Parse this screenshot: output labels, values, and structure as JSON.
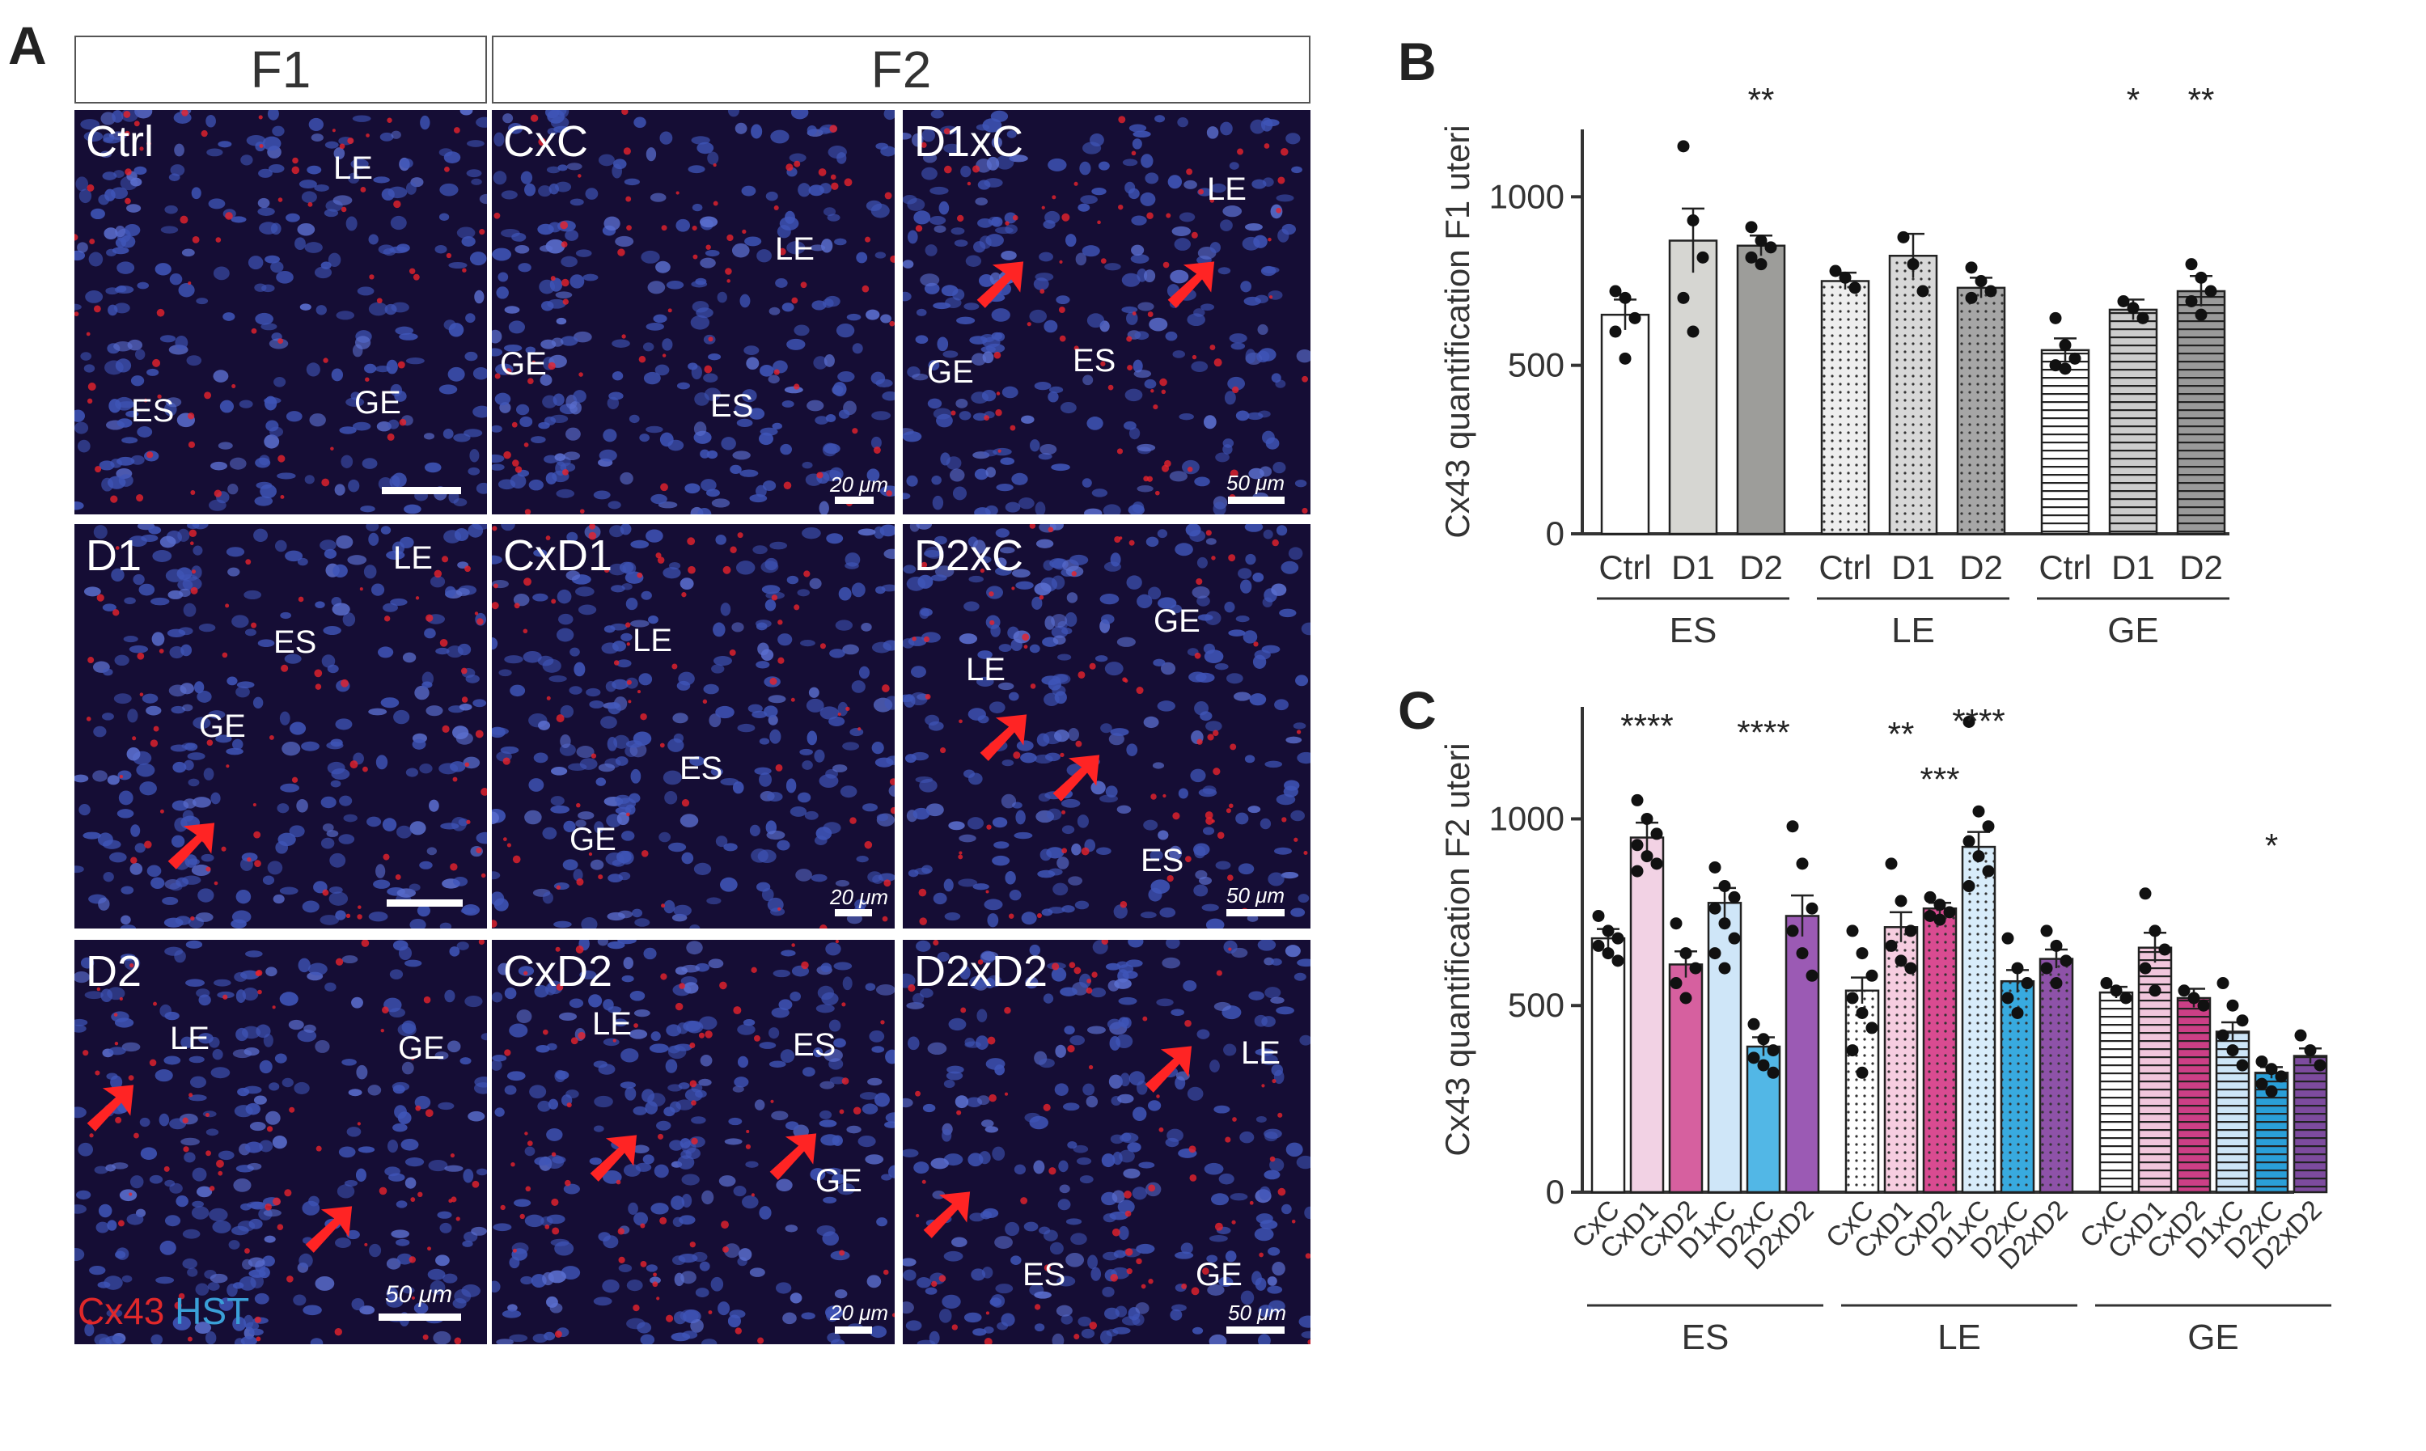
{
  "panels": {
    "a": "A",
    "b": "B",
    "c": "C"
  },
  "headers": {
    "f1": "F1",
    "f2": "F2"
  },
  "images": [
    {
      "title": "Ctrl",
      "labels": [
        "LE",
        "ES",
        "GE"
      ],
      "scale": "",
      "arrows": 0
    },
    {
      "title": "CxC",
      "labels": [
        "LE",
        "GE",
        "ES"
      ],
      "scale": "20 μm",
      "arrows": 0
    },
    {
      "title": "D1xC",
      "labels": [
        "LE",
        "GE",
        "ES"
      ],
      "scale": "50 μm",
      "arrows": 2
    },
    {
      "title": "D1",
      "labels": [
        "LE",
        "ES",
        "GE"
      ],
      "scale": "",
      "arrows": 1
    },
    {
      "title": "CxD1",
      "labels": [
        "LE",
        "ES",
        "GE"
      ],
      "scale": "20 μm",
      "arrows": 0
    },
    {
      "title": "D2xC",
      "labels": [
        "GE",
        "LE",
        "ES"
      ],
      "scale": "50 μm",
      "arrows": 2
    },
    {
      "title": "D2",
      "labels": [
        "LE",
        "GE"
      ],
      "scale": "50 μm",
      "arrows": 2
    },
    {
      "title": "CxD2",
      "labels": [
        "LE",
        "ES",
        "GE"
      ],
      "scale": "20 μm",
      "arrows": 2
    },
    {
      "title": "D2xD2",
      "labels": [
        "LE",
        "ES",
        "GE"
      ],
      "scale": "50 μm",
      "arrows": 2
    }
  ],
  "stain": {
    "red": "Cx43",
    "blue": "HST",
    "red_color": "#e0282a",
    "blue_color": "#3aa0d8"
  },
  "chart_data": [
    {
      "id": "B",
      "type": "bar",
      "ylabel": "Cx43 quantification F1 uteri",
      "ylim": [
        0,
        1200
      ],
      "yticks": [
        0,
        500,
        1000
      ],
      "categories": [
        "Ctrl",
        "D1",
        "D2",
        "Ctrl",
        "D1",
        "D2",
        "Ctrl",
        "D1",
        "D2"
      ],
      "groups": [
        {
          "label": "ES",
          "start": 0,
          "end": 2
        },
        {
          "label": "LE",
          "start": 3,
          "end": 5
        },
        {
          "label": "GE",
          "start": 6,
          "end": 8
        }
      ],
      "values": [
        650,
        870,
        855,
        750,
        825,
        730,
        545,
        665,
        720
      ],
      "errors": [
        45,
        95,
        30,
        25,
        65,
        30,
        35,
        30,
        45
      ],
      "points": [
        [
          720,
          700,
          640,
          600,
          520
        ],
        [
          1150,
          930,
          820,
          700,
          600
        ],
        [
          910,
          870,
          850,
          820,
          800
        ],
        [
          780,
          760,
          730
        ],
        [
          880,
          800,
          720
        ],
        [
          790,
          750,
          720,
          700
        ],
        [
          640,
          560,
          520,
          500,
          490
        ],
        [
          690,
          670,
          640
        ],
        [
          800,
          760,
          720,
          690,
          650
        ]
      ],
      "fills": [
        "#ffffff",
        "#d6d6d2",
        "#9d9d9a",
        "#eeeeee",
        "#d8d8d8",
        "#a6a6a6",
        "#ffffff",
        "#cccccc",
        "#9a9a9a"
      ],
      "significance": [
        "",
        "",
        "**",
        "",
        "",
        "",
        "",
        "*",
        "**"
      ]
    },
    {
      "id": "C",
      "type": "bar",
      "ylabel": "Cx43 quantification F2 uteri",
      "ylim": [
        0,
        1300
      ],
      "yticks": [
        0,
        500,
        1000
      ],
      "categories": [
        "CxC",
        "CxD1",
        "CxD2",
        "D1xC",
        "D2xC",
        "D2xD2",
        "CxC",
        "CxD1",
        "CxD2",
        "D1xC",
        "D2xC",
        "D2xD2",
        "CxC",
        "CxD1",
        "CxD2",
        "D1xC",
        "D2xC",
        "D2xD2"
      ],
      "groups": [
        {
          "label": "ES",
          "start": 0,
          "end": 5
        },
        {
          "label": "LE",
          "start": 6,
          "end": 11
        },
        {
          "label": "GE",
          "start": 12,
          "end": 17
        }
      ],
      "values": [
        680,
        950,
        610,
        775,
        390,
        740,
        540,
        710,
        760,
        925,
        565,
        625,
        535,
        655,
        520,
        430,
        320,
        365
      ],
      "errors": [
        25,
        40,
        35,
        40,
        25,
        55,
        35,
        40,
        15,
        40,
        30,
        25,
        15,
        40,
        25,
        25,
        15,
        20
      ],
      "points": [
        [
          740,
          700,
          680,
          660,
          640,
          620
        ],
        [
          1050,
          1000,
          960,
          930,
          900,
          880,
          860
        ],
        [
          720,
          640,
          600,
          560,
          520
        ],
        [
          870,
          820,
          790,
          760,
          720,
          680,
          640,
          600
        ],
        [
          450,
          410,
          380,
          360,
          340,
          320
        ],
        [
          980,
          880,
          760,
          700,
          640,
          580
        ],
        [
          700,
          640,
          580,
          520,
          480,
          440,
          380,
          320
        ],
        [
          880,
          780,
          700,
          660,
          620,
          600
        ],
        [
          790,
          770,
          750,
          740,
          730
        ],
        [
          1260,
          1020,
          980,
          940,
          900,
          860,
          820
        ],
        [
          680,
          600,
          560,
          520,
          480
        ],
        [
          700,
          660,
          620,
          600,
          560
        ],
        [
          560,
          540,
          520
        ],
        [
          800,
          700,
          650,
          600,
          540
        ],
        [
          540,
          520,
          500
        ],
        [
          560,
          500,
          460,
          420,
          380,
          340
        ],
        [
          350,
          330,
          310,
          290,
          270
        ],
        [
          420,
          380,
          340
        ]
      ],
      "fills": [
        "#ffffff",
        "#f2d2e4",
        "#d6609f",
        "#cfe6f8",
        "#52b7e6",
        "#9b5ab4",
        "#ffffff",
        "#f6cde0",
        "#d94b91",
        "#d8ecfa",
        "#38aadf",
        "#8e52a8",
        "#ffffff",
        "#f1c6dc",
        "#cc3f86",
        "#cde5f7",
        "#2a9fd8",
        "#7d4b9e"
      ],
      "significance": [
        "",
        "****",
        "",
        "",
        "****",
        "",
        "",
        "**",
        "***",
        "****",
        "",
        "",
        "",
        "",
        "",
        "",
        "*",
        ""
      ]
    }
  ]
}
